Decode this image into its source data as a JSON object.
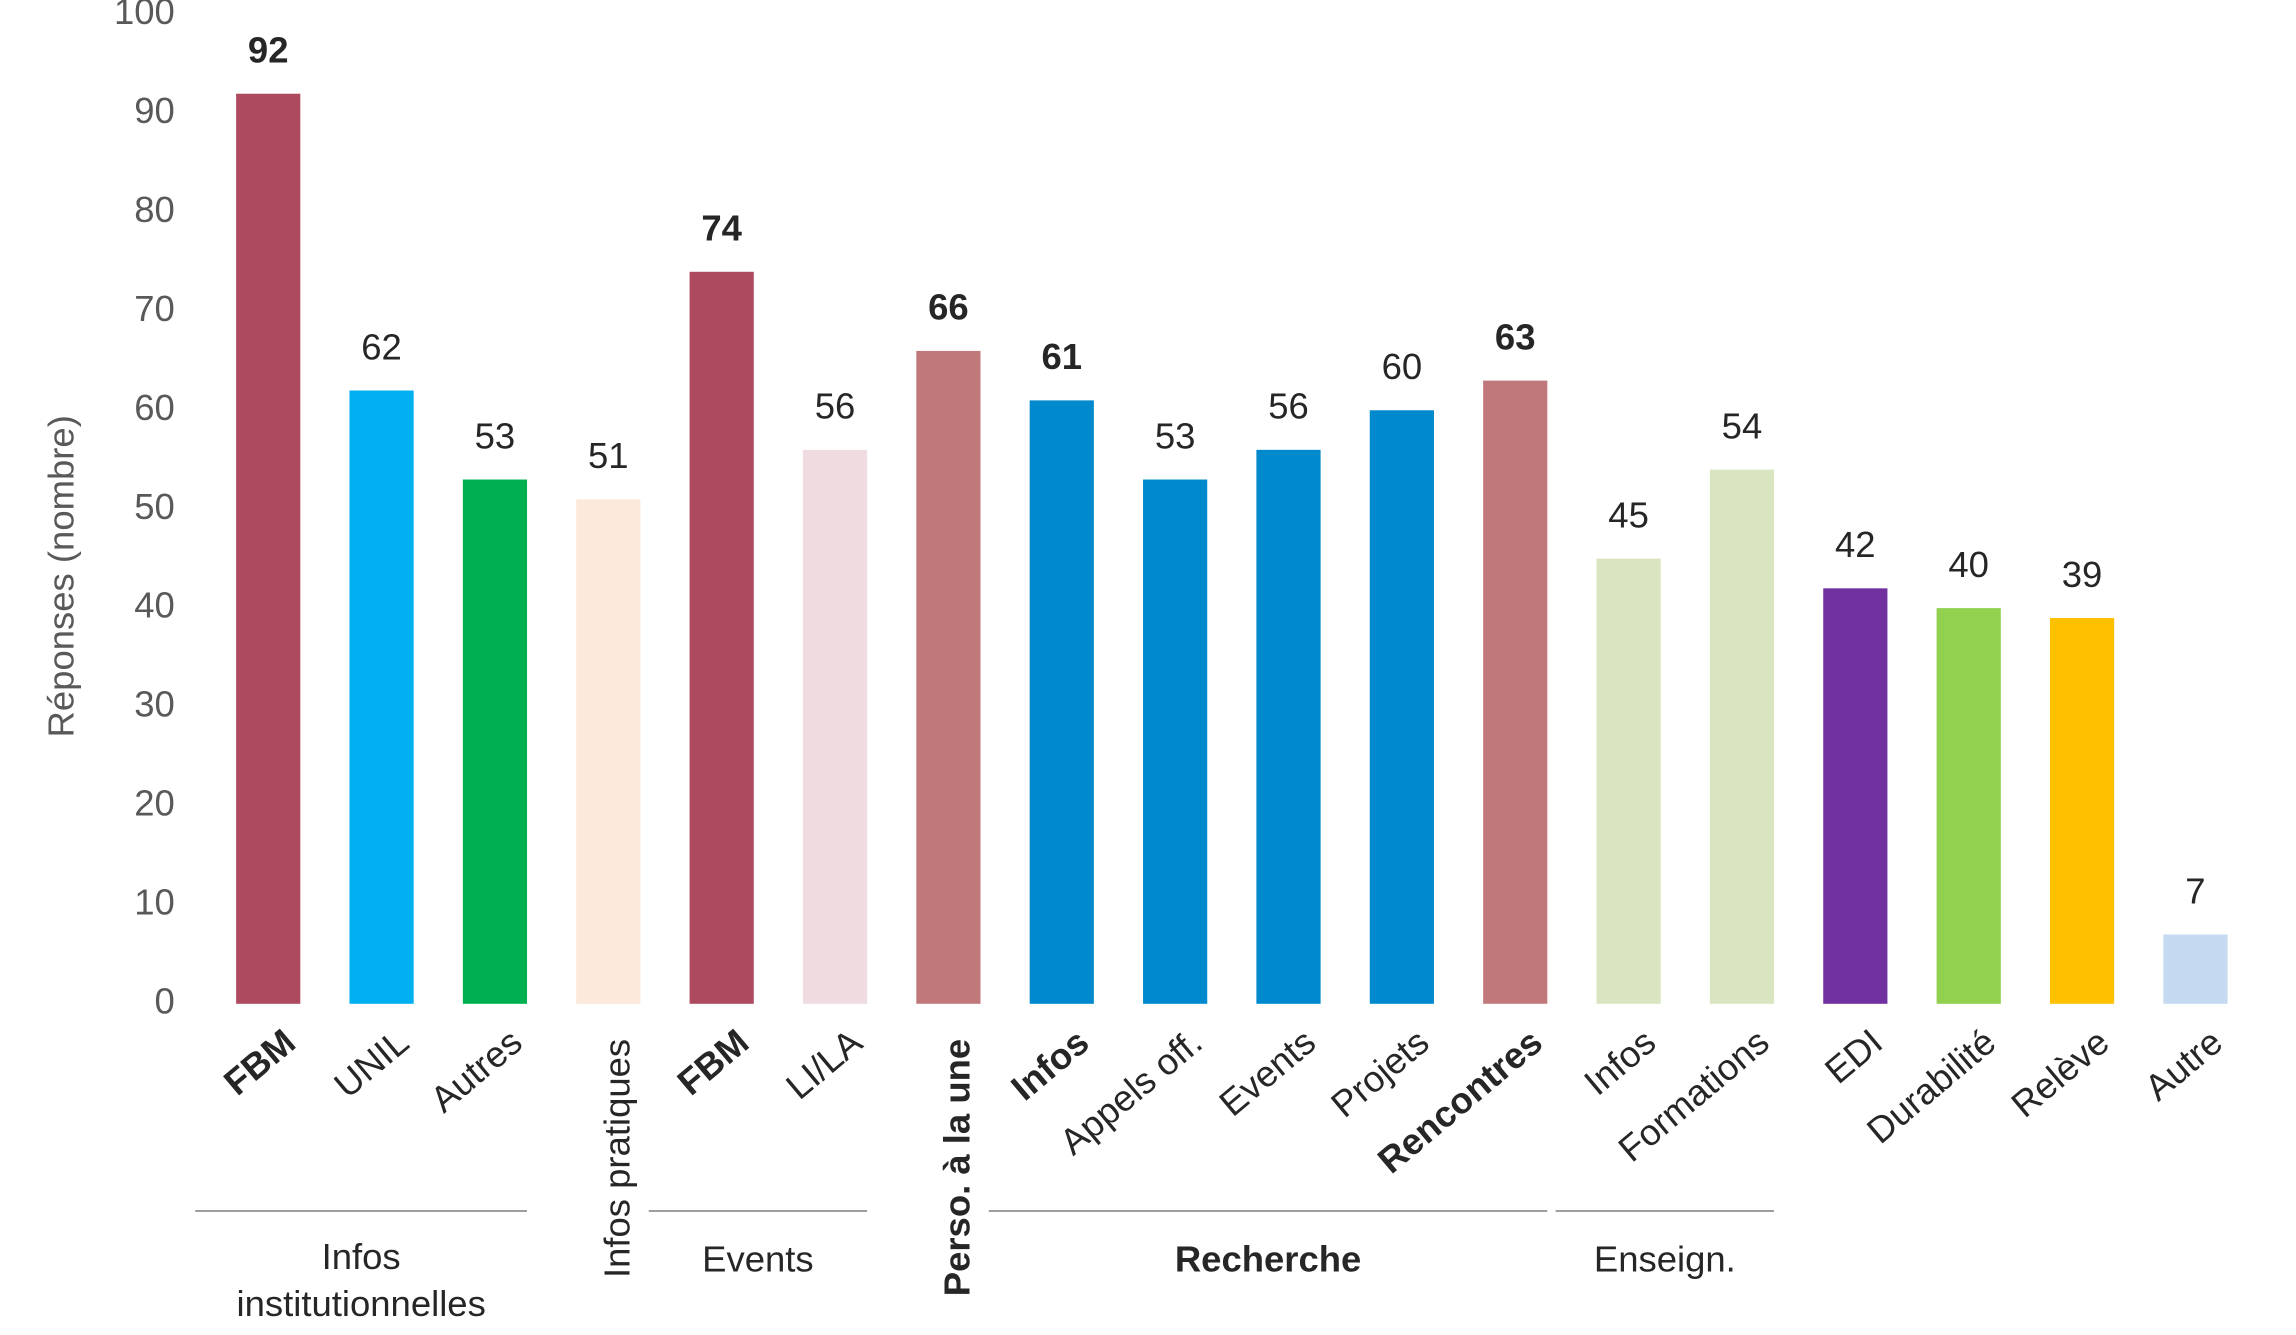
{
  "chart_data": {
    "type": "bar",
    "y_label": "Réponses (nombre)",
    "categories": [
      "FBM",
      "UNIL",
      "Autres",
      "Infos pratiques",
      "FBM",
      "LI/LA",
      "Perso. à la une",
      "Infos",
      "Appels off.",
      "Events",
      "Projets",
      "Rencontres",
      "Infos",
      "Formations",
      "EDI",
      "Durabilité",
      "Relève",
      "Autre"
    ],
    "values": [
      92,
      62,
      53,
      51,
      74,
      56,
      66,
      61,
      53,
      56,
      60,
      63,
      45,
      54,
      42,
      40,
      39,
      7
    ],
    "colors": [
      "#ad4a60",
      "#00b0f0",
      "#00b050",
      "#fce9dc",
      "#ad4a60",
      "#efdbe0",
      "#c0787a",
      "#0089cc",
      "#0089cc",
      "#0089cc",
      "#0089cc",
      "#c0787a",
      "#d9e5c0",
      "#d9e5c0",
      "#7030a0",
      "#92d050",
      "#ffc000",
      "#c5d9f1"
    ],
    "bold": [
      true,
      false,
      false,
      false,
      true,
      false,
      true,
      true,
      false,
      false,
      false,
      true,
      false,
      false,
      false,
      false,
      false,
      false
    ],
    "vertical_labels": [
      false,
      false,
      false,
      true,
      false,
      false,
      true,
      false,
      false,
      false,
      false,
      false,
      false,
      false,
      false,
      false,
      false,
      false
    ],
    "groups": [
      {
        "label": "Infos institutionnelles",
        "start": 0,
        "end": 2,
        "bold": false
      },
      {
        "label": "Events",
        "start": 4,
        "end": 5,
        "bold": false
      },
      {
        "label": "Recherche",
        "start": 7,
        "end": 11,
        "bold": true
      },
      {
        "label": "Enseign.",
        "start": 12,
        "end": 13,
        "bold": false
      }
    ],
    "ylim": [
      0,
      100
    ],
    "yticks": [
      0,
      10,
      20,
      30,
      40,
      50,
      60,
      70,
      80,
      90,
      100
    ],
    "grid": false
  }
}
